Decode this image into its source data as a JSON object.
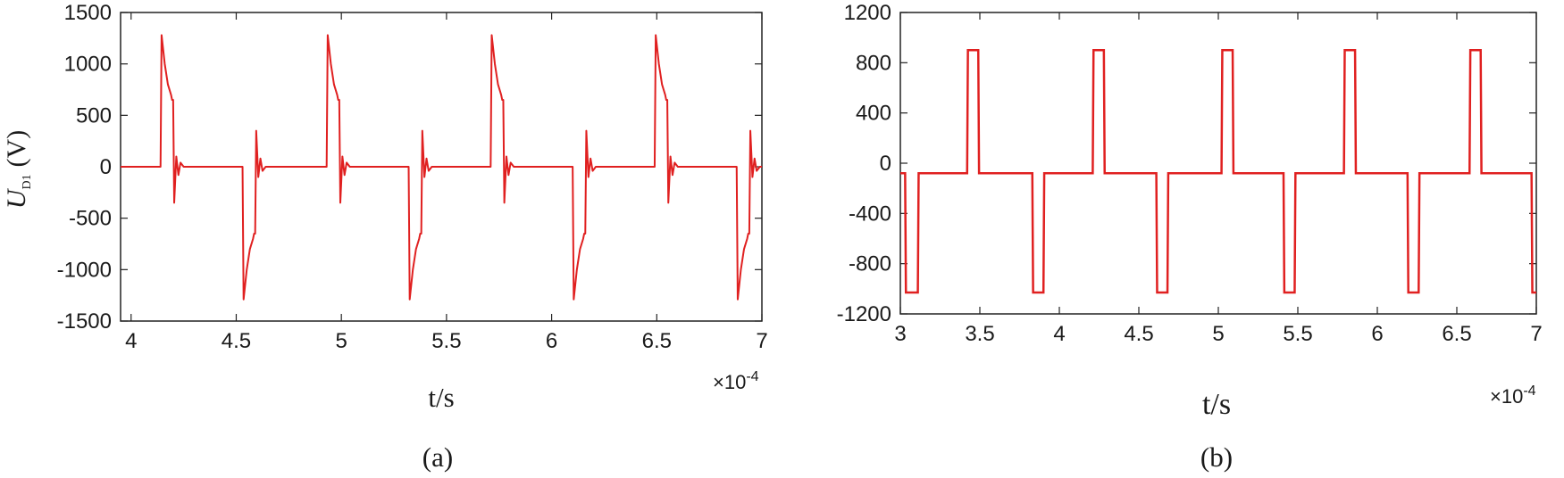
{
  "figure": {
    "series_color": "#e02020",
    "axis_color": "#222222"
  },
  "chart_data": [
    {
      "type": "line",
      "panel_label": "(a)",
      "ylabel_main": "U",
      "ylabel_sub": "D1",
      "ylabel_unit": "(V)",
      "xlabel": "t/s",
      "x_multiplier_base": "×10",
      "x_multiplier_exp": "-4",
      "xlim": [
        3.95,
        7.0
      ],
      "ylim": [
        -1500,
        1500
      ],
      "xticks": [
        4,
        4.5,
        5,
        5.5,
        6,
        6.5,
        7
      ],
      "xtick_labels": [
        "4",
        "4.5",
        "5",
        "5.5",
        "6",
        "6.5",
        "7"
      ],
      "yticks": [
        1500,
        1000,
        500,
        0,
        -500,
        -1000,
        -1500
      ],
      "ytick_labels": [
        "1500",
        "1000",
        "500",
        "0",
        "-500",
        "-1000",
        "-1500"
      ],
      "grid": false,
      "series": [
        {
          "values": [
            [
              3.95,
              0
            ],
            [
              4.14,
              0
            ],
            [
              4.145,
              1280
            ],
            [
              4.16,
              1000
            ],
            [
              4.175,
              800
            ],
            [
              4.19,
              700
            ],
            [
              4.195,
              650
            ],
            [
              4.2,
              650
            ],
            [
              4.205,
              -350
            ],
            [
              4.215,
              100
            ],
            [
              4.225,
              -80
            ],
            [
              4.235,
              40
            ],
            [
              4.25,
              0
            ],
            [
              4.53,
              0
            ],
            [
              4.535,
              -1290
            ],
            [
              4.55,
              -1000
            ],
            [
              4.565,
              -800
            ],
            [
              4.58,
              -700
            ],
            [
              4.585,
              -650
            ],
            [
              4.59,
              -650
            ],
            [
              4.595,
              350
            ],
            [
              4.605,
              -100
            ],
            [
              4.615,
              80
            ],
            [
              4.625,
              -40
            ],
            [
              4.64,
              0
            ],
            [
              4.93,
              0
            ],
            [
              4.935,
              1280
            ],
            [
              4.95,
              1000
            ],
            [
              4.965,
              800
            ],
            [
              4.98,
              700
            ],
            [
              4.985,
              650
            ],
            [
              4.99,
              650
            ],
            [
              4.995,
              -350
            ],
            [
              5.005,
              100
            ],
            [
              5.015,
              -80
            ],
            [
              5.025,
              40
            ],
            [
              5.04,
              0
            ],
            [
              5.32,
              0
            ],
            [
              5.325,
              -1290
            ],
            [
              5.34,
              -1000
            ],
            [
              5.355,
              -800
            ],
            [
              5.37,
              -700
            ],
            [
              5.375,
              -650
            ],
            [
              5.38,
              -650
            ],
            [
              5.385,
              350
            ],
            [
              5.395,
              -100
            ],
            [
              5.405,
              80
            ],
            [
              5.415,
              -40
            ],
            [
              5.43,
              0
            ],
            [
              5.71,
              0
            ],
            [
              5.715,
              1280
            ],
            [
              5.73,
              1000
            ],
            [
              5.745,
              800
            ],
            [
              5.76,
              700
            ],
            [
              5.765,
              650
            ],
            [
              5.77,
              650
            ],
            [
              5.775,
              -350
            ],
            [
              5.785,
              100
            ],
            [
              5.795,
              -80
            ],
            [
              5.805,
              40
            ],
            [
              5.82,
              0
            ],
            [
              6.1,
              0
            ],
            [
              6.105,
              -1290
            ],
            [
              6.12,
              -1000
            ],
            [
              6.135,
              -800
            ],
            [
              6.15,
              -700
            ],
            [
              6.155,
              -650
            ],
            [
              6.16,
              -650
            ],
            [
              6.165,
              350
            ],
            [
              6.175,
              -100
            ],
            [
              6.185,
              80
            ],
            [
              6.195,
              -40
            ],
            [
              6.21,
              0
            ],
            [
              6.49,
              0
            ],
            [
              6.495,
              1280
            ],
            [
              6.51,
              1000
            ],
            [
              6.525,
              800
            ],
            [
              6.54,
              700
            ],
            [
              6.545,
              650
            ],
            [
              6.55,
              650
            ],
            [
              6.555,
              -350
            ],
            [
              6.565,
              100
            ],
            [
              6.575,
              -80
            ],
            [
              6.585,
              40
            ],
            [
              6.6,
              0
            ],
            [
              6.88,
              0
            ],
            [
              6.885,
              -1290
            ],
            [
              6.9,
              -1000
            ],
            [
              6.915,
              -800
            ],
            [
              6.93,
              -700
            ],
            [
              6.935,
              -650
            ],
            [
              6.94,
              -650
            ],
            [
              6.945,
              350
            ],
            [
              6.955,
              -100
            ],
            [
              6.965,
              80
            ],
            [
              6.975,
              -40
            ],
            [
              6.99,
              0
            ],
            [
              7.0,
              0
            ]
          ]
        }
      ]
    },
    {
      "type": "line",
      "panel_label": "(b)",
      "xlabel": "t/s",
      "x_multiplier_base": "×10",
      "x_multiplier_exp": "-4",
      "xlim": [
        3.0,
        7.0
      ],
      "ylim": [
        -1200,
        1200
      ],
      "xticks": [
        3,
        3.5,
        4,
        4.5,
        5,
        5.5,
        6,
        6.5,
        7
      ],
      "xtick_labels": [
        "3",
        "3.5",
        "4",
        "4.5",
        "5",
        "5.5",
        "6",
        "6.5",
        "7"
      ],
      "yticks": [
        1200,
        800,
        400,
        0,
        -400,
        -800,
        -1200
      ],
      "ytick_labels": [
        "1200",
        "800",
        "400",
        "0",
        "-400",
        "-800",
        "-1200"
      ],
      "grid": false,
      "series": [
        {
          "values": [
            [
              3.0,
              -80
            ],
            [
              3.03,
              -80
            ],
            [
              3.035,
              -1030
            ],
            [
              3.11,
              -1030
            ],
            [
              3.115,
              -80
            ],
            [
              3.42,
              -80
            ],
            [
              3.425,
              900
            ],
            [
              3.49,
              900
            ],
            [
              3.495,
              -80
            ],
            [
              3.83,
              -80
            ],
            [
              3.835,
              -1030
            ],
            [
              3.9,
              -1030
            ],
            [
              3.905,
              -80
            ],
            [
              4.21,
              -80
            ],
            [
              4.215,
              900
            ],
            [
              4.28,
              900
            ],
            [
              4.285,
              -80
            ],
            [
              4.61,
              -80
            ],
            [
              4.615,
              -1030
            ],
            [
              4.68,
              -1030
            ],
            [
              4.685,
              -80
            ],
            [
              5.02,
              -80
            ],
            [
              5.025,
              900
            ],
            [
              5.09,
              900
            ],
            [
              5.095,
              -80
            ],
            [
              5.41,
              -80
            ],
            [
              5.415,
              -1030
            ],
            [
              5.48,
              -1030
            ],
            [
              5.485,
              -80
            ],
            [
              5.79,
              -80
            ],
            [
              5.795,
              900
            ],
            [
              5.86,
              900
            ],
            [
              5.865,
              -80
            ],
            [
              6.19,
              -80
            ],
            [
              6.195,
              -1030
            ],
            [
              6.26,
              -1030
            ],
            [
              6.265,
              -80
            ],
            [
              6.58,
              -80
            ],
            [
              6.585,
              900
            ],
            [
              6.65,
              900
            ],
            [
              6.655,
              -80
            ],
            [
              6.97,
              -80
            ],
            [
              6.975,
              -1030
            ],
            [
              7.0,
              -1030
            ]
          ]
        }
      ]
    }
  ]
}
